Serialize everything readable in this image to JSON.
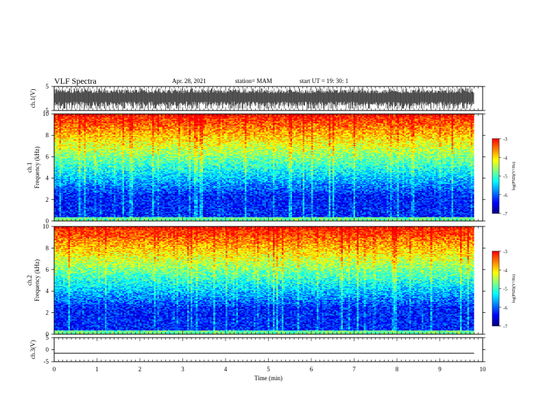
{
  "header": {
    "title": "VLF Spectra",
    "date": "Apr. 28, 2021",
    "station": "station= MAM",
    "start": "start  UT =   19: 30: 1"
  },
  "chart_data": [
    {
      "type": "line",
      "panel": "ch1-waveform",
      "ylabel": "ch.1(V)",
      "ylim": [
        -5,
        5
      ],
      "yticks": [
        "5",
        "-5"
      ],
      "xlim": [
        0,
        10
      ],
      "description_values": {
        "baseline": 0,
        "typical_min": -4.5,
        "typical_max": 3.5
      }
    },
    {
      "type": "heatmap",
      "panel": "ch1-spectrogram",
      "ylabel_line1": "ch.1",
      "ylabel_line2": "Frequency  (kHz)",
      "ylim": [
        0,
        10
      ],
      "yticks": [
        "0",
        "2",
        "4",
        "6",
        "8",
        "10"
      ],
      "xlim": [
        0,
        10
      ],
      "data_end_min": 9.8
    },
    {
      "type": "heatmap",
      "panel": "ch2-spectrogram",
      "ylabel_line1": "ch.2",
      "ylabel_line2": "Frequency  (kHz)",
      "ylim": [
        0,
        10
      ],
      "yticks": [
        "0",
        "2",
        "4",
        "6",
        "8",
        "10"
      ],
      "xlim": [
        0,
        10
      ],
      "data_end_min": 9.8
    },
    {
      "type": "line",
      "panel": "ch3-waveform",
      "ylabel": "ch.3(V)",
      "ylim": [
        -5,
        5
      ],
      "yticks": [
        "5",
        "0",
        "-5"
      ],
      "xlim": [
        0,
        10
      ],
      "values": {
        "constant": -1.5
      }
    }
  ],
  "xaxis": {
    "label": "Time  (min)",
    "ticks": [
      "0",
      "1",
      "2",
      "3",
      "4",
      "5",
      "6",
      "7",
      "8",
      "9",
      "10"
    ]
  },
  "colorbar": {
    "label": "log(PSD)(V²/Hz)",
    "ticks": [
      "-3",
      "-4",
      "-5",
      "-6",
      "-7"
    ],
    "range": [
      -7,
      -3
    ]
  },
  "colors": {
    "scale": [
      "#00007f",
      "#0000ff",
      "#0080ff",
      "#00ffff",
      "#80ff80",
      "#ffff00",
      "#ff8000",
      "#ff0000"
    ]
  }
}
